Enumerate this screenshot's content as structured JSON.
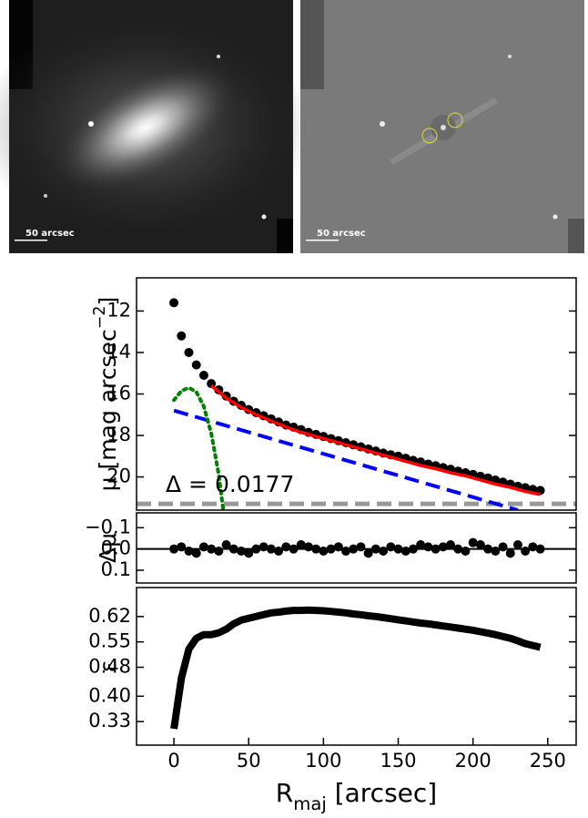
{
  "images": [
    {
      "scale_label": "50 arcsec"
    },
    {
      "scale_label": "50 arcsec"
    }
  ],
  "chart_data": [
    {
      "type": "line",
      "ylabel": [
        "μ [mag arcsec",
        "−2",
        "]"
      ],
      "annotation": "Δ = 0.0177",
      "xlim": [
        -25,
        269
      ],
      "ylim": [
        21.6,
        10.4
      ],
      "yticks": [
        12,
        14,
        16,
        18,
        20
      ],
      "hlines": [
        {
          "y": 21.3,
          "color": "#999999",
          "style": "dashed"
        }
      ],
      "series": [
        {
          "style": "markers",
          "color": "#000000",
          "x": [
            0,
            5,
            10,
            15,
            20,
            25,
            30,
            35,
            40,
            45,
            50,
            55,
            60,
            65,
            70,
            75,
            80,
            85,
            90,
            95,
            100,
            105,
            110,
            115,
            120,
            125,
            130,
            135,
            140,
            145,
            150,
            155,
            160,
            165,
            170,
            175,
            180,
            185,
            190,
            195,
            200,
            205,
            210,
            215,
            220,
            225,
            230,
            235,
            240,
            245
          ],
          "values": [
            11.6,
            13.2,
            14.0,
            14.6,
            15.1,
            15.5,
            15.8,
            16.1,
            16.35,
            16.55,
            16.75,
            16.9,
            17.05,
            17.2,
            17.35,
            17.5,
            17.6,
            17.72,
            17.85,
            17.95,
            18.05,
            18.15,
            18.25,
            18.35,
            18.45,
            18.55,
            18.65,
            18.75,
            18.85,
            18.93,
            19.0,
            19.1,
            19.2,
            19.28,
            19.38,
            19.46,
            19.55,
            19.63,
            19.72,
            19.8,
            19.88,
            19.97,
            20.05,
            20.15,
            20.25,
            20.35,
            20.45,
            20.52,
            20.6,
            20.65
          ]
        },
        {
          "style": "solid",
          "color": "#ff0000",
          "x": [
            25,
            35,
            45,
            55,
            65,
            75,
            85,
            95,
            105,
            115,
            125,
            135,
            145,
            155,
            165,
            175,
            185,
            195,
            205,
            215,
            225,
            235,
            245
          ],
          "values": [
            15.6,
            16.2,
            16.65,
            17.0,
            17.3,
            17.6,
            17.85,
            18.05,
            18.25,
            18.45,
            18.65,
            18.85,
            19.05,
            19.25,
            19.45,
            19.6,
            19.8,
            19.95,
            20.15,
            20.35,
            20.5,
            20.7,
            20.85
          ]
        },
        {
          "style": "dashed",
          "color": "#0000ff",
          "x": [
            0,
            230
          ],
          "values": [
            16.8,
            21.6
          ]
        },
        {
          "style": "dotted",
          "color": "#008000",
          "x": [
            0,
            5,
            10,
            15,
            20,
            25,
            30,
            33
          ],
          "values": [
            16.3,
            15.85,
            15.7,
            15.9,
            16.6,
            17.9,
            19.9,
            21.6
          ]
        }
      ]
    },
    {
      "type": "line",
      "ylabel": [
        "Δμ"
      ],
      "xlim": [
        -25,
        269
      ],
      "ylim": [
        0.16,
        -0.17
      ],
      "yticks": [
        {
          "value": -0.1,
          "label": "−0.1"
        },
        {
          "value": 0,
          "label": "0.0"
        },
        {
          "value": 0.1,
          "label": "0.1"
        }
      ],
      "hlines": [
        {
          "y": 0,
          "color": "#000000",
          "style": "solid"
        }
      ],
      "series": [
        {
          "style": "markers",
          "color": "#000000",
          "x": [
            0,
            5,
            10,
            15,
            20,
            25,
            30,
            35,
            40,
            45,
            50,
            55,
            60,
            65,
            70,
            75,
            80,
            85,
            90,
            95,
            100,
            105,
            110,
            115,
            120,
            125,
            130,
            135,
            140,
            145,
            150,
            155,
            160,
            165,
            170,
            175,
            180,
            185,
            190,
            195,
            200,
            205,
            210,
            215,
            220,
            225,
            230,
            235,
            240,
            245
          ],
          "values": [
            0.0,
            -0.01,
            0.01,
            0.02,
            -0.01,
            0.0,
            0.01,
            -0.02,
            0.0,
            0.01,
            0.02,
            0.0,
            -0.01,
            0.0,
            0.01,
            -0.01,
            0.0,
            -0.02,
            -0.01,
            0.0,
            0.01,
            0.0,
            -0.01,
            0.01,
            0.0,
            -0.01,
            0.02,
            0.0,
            0.01,
            -0.01,
            0.0,
            0.01,
            0.0,
            -0.02,
            -0.01,
            0.0,
            -0.01,
            -0.02,
            0.0,
            0.01,
            -0.03,
            -0.02,
            0.0,
            0.01,
            -0.01,
            0.02,
            -0.02,
            0.01,
            -0.01,
            0.0
          ]
        }
      ]
    },
    {
      "type": "line",
      "ylabel": [
        "ε"
      ],
      "xlabel": [
        "R",
        "maj",
        " [arcsec]"
      ],
      "xlim": [
        -25,
        269
      ],
      "ylim": [
        0.265,
        0.7
      ],
      "xticks": [
        0,
        50,
        100,
        150,
        200,
        250
      ],
      "yticks": [
        0.33,
        {
          "value": 0.4,
          "label": "0.40"
        },
        0.48,
        0.55,
        0.62
      ],
      "series": [
        {
          "style": "thick",
          "color": "#000000",
          "x": [
            0,
            5,
            10,
            15,
            20,
            25,
            30,
            35,
            40,
            45,
            50,
            55,
            60,
            65,
            70,
            75,
            80,
            85,
            90,
            95,
            100,
            105,
            110,
            115,
            120,
            125,
            130,
            135,
            140,
            145,
            150,
            155,
            160,
            165,
            170,
            175,
            180,
            185,
            190,
            195,
            200,
            205,
            210,
            215,
            220,
            225,
            230,
            235,
            240,
            245
          ],
          "values": [
            0.31,
            0.45,
            0.53,
            0.56,
            0.57,
            0.57,
            0.575,
            0.585,
            0.6,
            0.61,
            0.615,
            0.62,
            0.625,
            0.63,
            0.632,
            0.635,
            0.637,
            0.637,
            0.638,
            0.637,
            0.636,
            0.634,
            0.632,
            0.63,
            0.627,
            0.625,
            0.622,
            0.62,
            0.617,
            0.614,
            0.611,
            0.608,
            0.605,
            0.602,
            0.6,
            0.597,
            0.594,
            0.591,
            0.588,
            0.585,
            0.582,
            0.578,
            0.574,
            0.57,
            0.565,
            0.56,
            0.553,
            0.545,
            0.54,
            0.535
          ]
        }
      ]
    }
  ]
}
